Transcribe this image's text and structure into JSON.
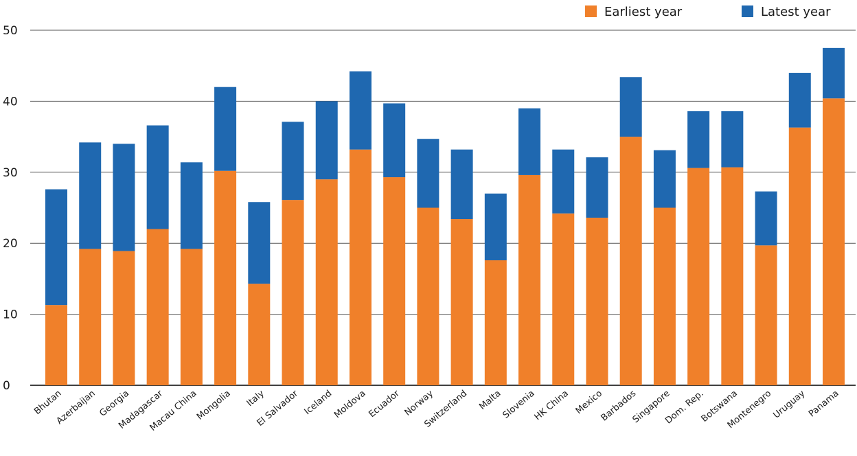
{
  "chart_data": {
    "type": "bar",
    "stacked": true,
    "categories": [
      "Bhutan",
      "Azerbaijan",
      "Georgia",
      "Madagascar",
      "Macau China",
      "Mongolia",
      "Italy",
      "El Salvador",
      "Iceland",
      "Moldova",
      "Ecuador",
      "Norway",
      "Switzerland",
      "Malta",
      "Slovenia",
      "HK China",
      "Mexico",
      "Barbados",
      "Singapore",
      "Dom. Rep.",
      "Botswana",
      "Montenegro",
      "Uruguay",
      "Panama"
    ],
    "series": [
      {
        "name": "Earliest year",
        "color": "#f0802a",
        "values": [
          11.3,
          19.2,
          18.9,
          22.0,
          19.2,
          30.2,
          14.3,
          26.1,
          29.0,
          33.2,
          29.3,
          25.0,
          23.4,
          17.6,
          29.6,
          24.2,
          23.6,
          35.0,
          25.0,
          30.6,
          30.7,
          19.7,
          36.3,
          40.4
        ]
      },
      {
        "name": "Latest year",
        "color": "#1f68b0",
        "values": [
          16.3,
          15.0,
          15.1,
          14.6,
          12.2,
          11.8,
          11.5,
          11.0,
          11.0,
          11.0,
          10.4,
          9.7,
          9.8,
          9.4,
          9.4,
          9.0,
          8.5,
          8.4,
          8.1,
          8.0,
          7.9,
          7.6,
          7.7,
          7.1
        ]
      }
    ],
    "title": "",
    "xlabel": "",
    "ylabel": "",
    "ylim": [
      0,
      50
    ],
    "yticks": [
      "0",
      "10",
      "20",
      "30",
      "40",
      "50"
    ],
    "grid": true,
    "legend_position": "top-right"
  }
}
